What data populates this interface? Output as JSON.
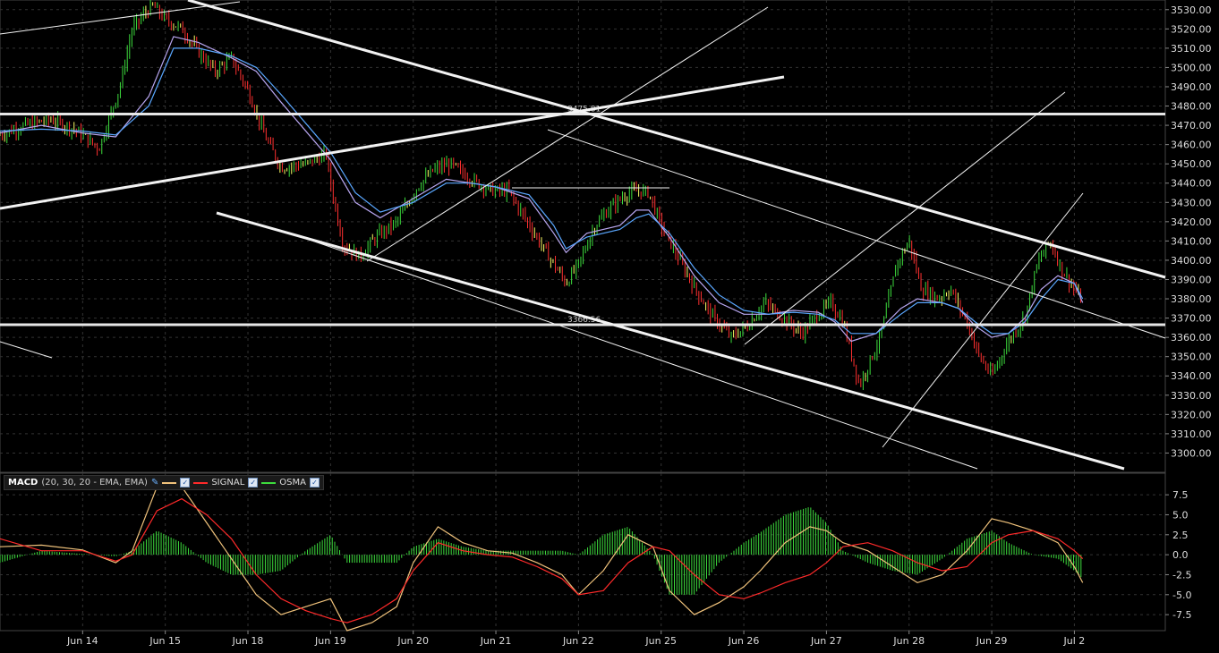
{
  "chart_data": [
    {
      "type": "line",
      "panel": "price",
      "ylim": [
        3290,
        3535
      ],
      "y_ticks": [
        "3530.00",
        "3520.00",
        "3510.00",
        "3500.00",
        "3490.00",
        "3480.00",
        "3470.00",
        "3460.00",
        "3450.00",
        "3440.00",
        "3430.00",
        "3420.00",
        "3410.00",
        "3400.00",
        "3390.00",
        "3380.00",
        "3370.00",
        "3360.00",
        "3350.00",
        "3340.00",
        "3330.00",
        "3320.00",
        "3310.00",
        "3300.00"
      ],
      "x_ticks": [
        "Jun 14",
        "Jun 15",
        "Jun 18",
        "Jun 19",
        "Jun 20",
        "Jun 21",
        "Jun 22",
        "Jun 25",
        "Jun 26",
        "Jun 27",
        "Jun 28",
        "Jun 29",
        "Jul 2"
      ],
      "x_range": [
        13.0,
        27.1
      ],
      "x_tick_positions": [
        14,
        15,
        16,
        17,
        18,
        19,
        20,
        21,
        22,
        23,
        24,
        25,
        26
      ],
      "grid": true,
      "price": {
        "x": [
          13.0,
          13.3,
          13.6,
          13.9,
          14.2,
          14.45,
          14.6,
          14.75,
          14.85,
          15.0,
          15.2,
          15.4,
          15.6,
          15.8,
          16.0,
          16.2,
          16.4,
          16.7,
          16.95,
          17.0,
          17.15,
          17.35,
          17.55,
          17.8,
          18.05,
          18.25,
          18.45,
          18.7,
          18.95,
          19.15,
          19.35,
          19.55,
          19.7,
          19.85,
          20.0,
          20.2,
          20.4,
          20.6,
          20.75,
          20.85,
          21.0,
          21.2,
          21.4,
          21.6,
          21.85,
          22.05,
          22.25,
          22.45,
          22.7,
          22.9,
          23.05,
          23.2,
          23.4,
          23.65,
          23.85,
          24.0,
          24.15,
          24.35,
          24.5,
          24.7,
          24.85,
          25.0,
          25.2,
          25.4,
          25.55,
          25.7,
          25.85,
          26.0,
          26.1
        ],
        "values": [
          3465,
          3470,
          3473,
          3468,
          3458,
          3490,
          3520,
          3528,
          3532,
          3525,
          3520,
          3508,
          3498,
          3505,
          3488,
          3465,
          3448,
          3450,
          3455,
          3440,
          3408,
          3402,
          3412,
          3420,
          3438,
          3447,
          3450,
          3442,
          3436,
          3436,
          3422,
          3408,
          3398,
          3388,
          3398,
          3418,
          3428,
          3435,
          3436,
          3435,
          3418,
          3402,
          3386,
          3372,
          3360,
          3366,
          3378,
          3371,
          3362,
          3372,
          3378,
          3368,
          3335,
          3360,
          3398,
          3410,
          3385,
          3380,
          3385,
          3368,
          3350,
          3340,
          3358,
          3370,
          3398,
          3410,
          3395,
          3385,
          3378
        ]
      },
      "series": [
        {
          "name": "",
          "color": "#b8a6f0",
          "x": [
            13.0,
            13.5,
            14.0,
            14.4,
            14.8,
            15.1,
            15.4,
            15.8,
            16.1,
            16.4,
            16.8,
            17.0,
            17.3,
            17.6,
            18.0,
            18.4,
            18.7,
            19.0,
            19.4,
            19.7,
            19.85,
            20.1,
            20.5,
            20.7,
            20.85,
            21.1,
            21.4,
            21.7,
            22.0,
            22.3,
            22.6,
            22.9,
            23.1,
            23.3,
            23.6,
            23.9,
            24.1,
            24.4,
            24.6,
            24.8,
            25.0,
            25.2,
            25.4,
            25.6,
            25.8,
            26.0,
            26.1
          ],
          "values": [
            3466,
            3470,
            3466,
            3464,
            3485,
            3516,
            3513,
            3505,
            3498,
            3482,
            3462,
            3452,
            3430,
            3422,
            3432,
            3442,
            3440,
            3438,
            3432,
            3414,
            3404,
            3414,
            3418,
            3426,
            3426,
            3412,
            3392,
            3378,
            3372,
            3372,
            3374,
            3373,
            3368,
            3358,
            3362,
            3375,
            3380,
            3378,
            3375,
            3366,
            3360,
            3362,
            3370,
            3385,
            3392,
            3388,
            3378
          ]
        },
        {
          "name": "",
          "color": "#5aa7ff",
          "x": [
            13.0,
            13.5,
            14.0,
            14.4,
            14.8,
            15.1,
            15.4,
            15.8,
            16.1,
            16.4,
            16.8,
            17.0,
            17.3,
            17.6,
            18.0,
            18.4,
            18.7,
            19.0,
            19.4,
            19.7,
            19.85,
            20.1,
            20.5,
            20.7,
            20.85,
            21.1,
            21.4,
            21.7,
            22.0,
            22.3,
            22.6,
            22.9,
            23.1,
            23.3,
            23.6,
            23.9,
            24.1,
            24.4,
            24.6,
            24.8,
            25.0,
            25.2,
            25.4,
            25.6,
            25.8,
            26.0,
            26.1
          ],
          "values": [
            3467,
            3468,
            3467,
            3465,
            3480,
            3510,
            3510,
            3506,
            3500,
            3486,
            3466,
            3456,
            3435,
            3425,
            3430,
            3440,
            3440,
            3438,
            3434,
            3418,
            3406,
            3412,
            3416,
            3422,
            3424,
            3414,
            3396,
            3382,
            3374,
            3372,
            3373,
            3372,
            3369,
            3362,
            3362,
            3372,
            3378,
            3378,
            3375,
            3368,
            3362,
            3362,
            3368,
            3380,
            3390,
            3388,
            3380
          ]
        }
      ],
      "reference_lines": [
        {
          "label": "3475.81",
          "value": 3475.81
        },
        {
          "label": "3366.56",
          "value": 3366.56
        }
      ]
    },
    {
      "type": "line",
      "panel": "indicator",
      "title": "MACD",
      "params": "(20, 30, 20 - EMA, EMA)",
      "ylim": [
        -9.5,
        10.2
      ],
      "y_ticks": [
        "7.5",
        "5.0",
        "2.5",
        "0.0",
        "-2.5",
        "-5.0",
        "-7.5"
      ],
      "y_tick_values": [
        7.5,
        5.0,
        2.5,
        0.0,
        -2.5,
        -5.0,
        -7.5
      ],
      "x": [
        13.0,
        13.5,
        14.0,
        14.4,
        14.6,
        14.9,
        15.2,
        15.5,
        15.8,
        16.1,
        16.4,
        16.7,
        17.0,
        17.2,
        17.5,
        17.8,
        18.0,
        18.3,
        18.6,
        18.9,
        19.2,
        19.5,
        19.8,
        20.0,
        20.3,
        20.6,
        20.9,
        21.1,
        21.4,
        21.7,
        22.0,
        22.2,
        22.5,
        22.8,
        23.0,
        23.2,
        23.5,
        23.8,
        24.1,
        24.4,
        24.7,
        25.0,
        25.2,
        25.5,
        25.8,
        26.0,
        26.1
      ],
      "series": [
        {
          "name": "",
          "color": "#f0c27b",
          "values": [
            1.0,
            1.2,
            0.6,
            -1.0,
            0.5,
            8.5,
            8.5,
            4.0,
            -0.5,
            -5.0,
            -7.5,
            -6.5,
            -5.5,
            -9.5,
            -8.5,
            -6.5,
            -1.0,
            3.5,
            1.5,
            0.5,
            0.2,
            -1.0,
            -2.5,
            -5.0,
            -2.0,
            2.5,
            1.0,
            -4.5,
            -7.5,
            -6.0,
            -4.0,
            -2.0,
            1.5,
            3.5,
            3.0,
            1.5,
            0.5,
            -1.5,
            -3.5,
            -2.5,
            0.5,
            4.5,
            4.0,
            3.0,
            1.5,
            -1.5,
            -3.5
          ]
        },
        {
          "name": "SIGNAL",
          "color": "#ff2a2a",
          "values": [
            2.0,
            0.5,
            0.5,
            -0.8,
            0.0,
            5.5,
            7.0,
            5.0,
            2.0,
            -2.5,
            -5.5,
            -7.0,
            -8.0,
            -8.5,
            -7.5,
            -5.5,
            -2.0,
            1.5,
            0.5,
            0.0,
            -0.3,
            -1.5,
            -3.0,
            -5.0,
            -4.5,
            -1.0,
            1.0,
            0.5,
            -2.5,
            -5.0,
            -5.5,
            -4.8,
            -3.5,
            -2.5,
            -1.0,
            1.0,
            1.5,
            0.5,
            -1.0,
            -2.0,
            -1.5,
            1.5,
            2.5,
            3.0,
            2.0,
            0.5,
            -0.5
          ]
        }
      ],
      "osma": {
        "name": "OSMA",
        "color": "#3ddc3d",
        "values": [
          -1.0,
          0.5,
          0.1,
          -0.2,
          0.5,
          3.0,
          1.5,
          -1.0,
          -2.5,
          -2.5,
          -2.0,
          0.5,
          2.5,
          -1.0,
          -1.0,
          -1.0,
          1.0,
          2.0,
          1.0,
          0.5,
          0.5,
          0.5,
          0.5,
          0.0,
          2.5,
          3.5,
          0.0,
          -5.0,
          -5.0,
          -1.0,
          1.5,
          2.8,
          5.0,
          6.0,
          4.0,
          0.5,
          -1.0,
          -2.0,
          -2.5,
          -0.5,
          2.0,
          3.0,
          1.5,
          0.0,
          -0.5,
          -2.0,
          -3.0
        ]
      }
    }
  ]
}
